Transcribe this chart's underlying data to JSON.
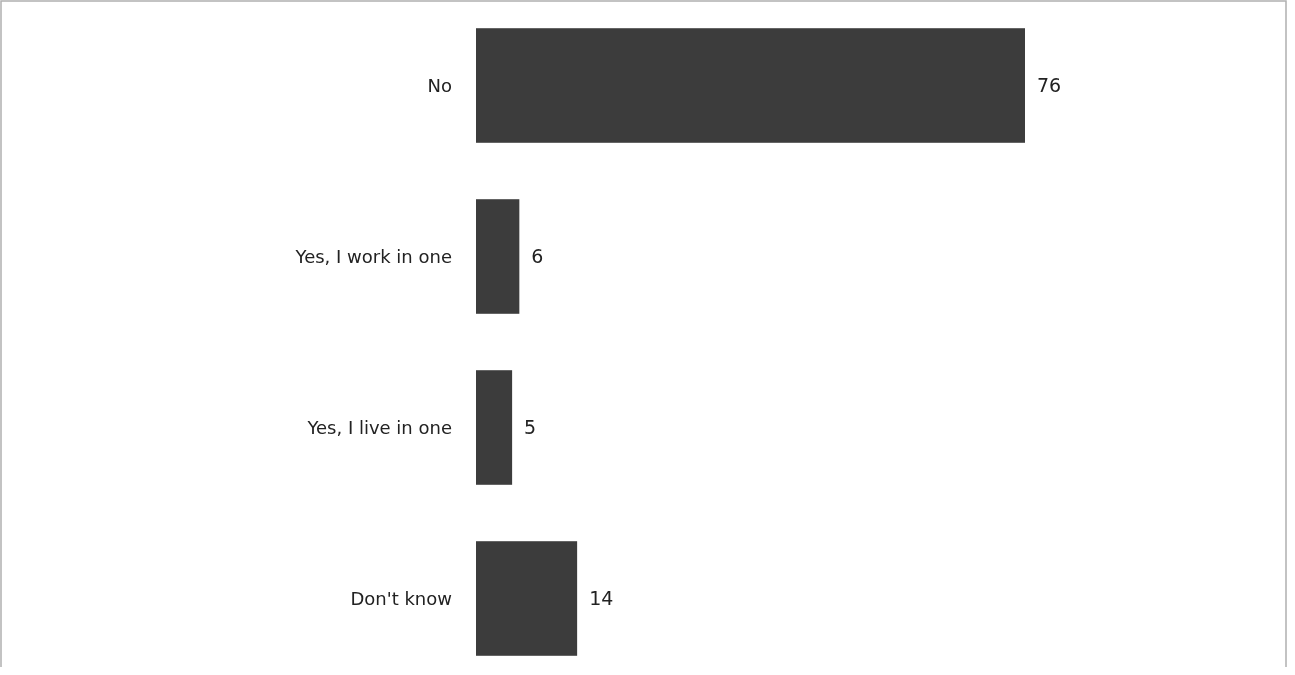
{
  "chart_data": {
    "type": "bar",
    "orientation": "horizontal",
    "categories": [
      "No",
      "Yes, I work in one",
      "Yes, I live in one",
      "Don't know"
    ],
    "values": [
      76,
      6,
      5,
      14
    ],
    "color": "#3c3c3c",
    "data_labels": true
  }
}
